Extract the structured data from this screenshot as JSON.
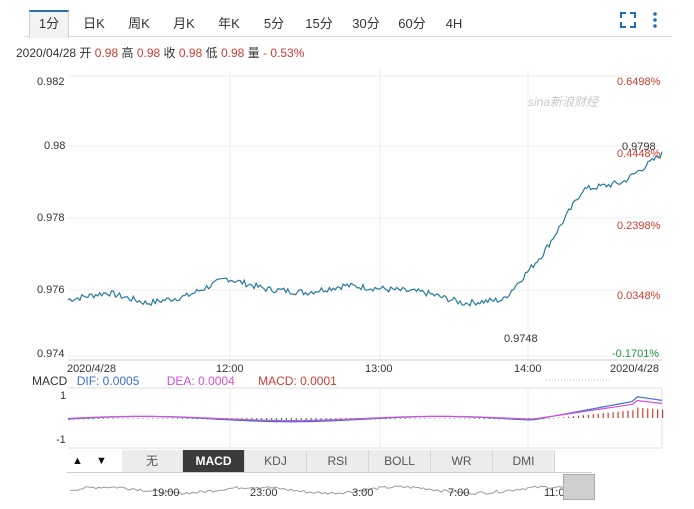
{
  "tabs": [
    "1分",
    "日K",
    "周K",
    "月K",
    "年K",
    "5分",
    "15分",
    "30分",
    "60分",
    "4H"
  ],
  "active_tab": "1分",
  "icons": {
    "fullscreen": "fullscreen-icon",
    "more": "more-vertical-icon"
  },
  "quote": {
    "date": "2020/04/28",
    "open_label": "开",
    "open": "0.98",
    "high_label": "高",
    "high": "0.98",
    "close_label": "收",
    "close": "0.98",
    "low_label": "低",
    "low": "0.98",
    "vol_label": "量",
    "change": "- 0.53%"
  },
  "watermark": "sina新浪财经",
  "price_axis": [
    "0.982",
    "0.98",
    "0.978",
    "0.976",
    "0.974"
  ],
  "pct_axis": [
    "0.6498%",
    "0.4448%",
    "0.2398%",
    "0.0348%",
    "-0.1701%"
  ],
  "x_labels": [
    "2020/4/28",
    "12:00",
    "13:00",
    "14:00",
    "2020/4/28"
  ],
  "annotations": {
    "last": "0.9798",
    "low_point": "0.9748"
  },
  "macd": {
    "title": "MACD",
    "dif_label": "DIF: 0.0005",
    "dea_label": "DEA: 0.0004",
    "macd_label": "MACD: 0.0001",
    "axis": [
      "1",
      "-1"
    ]
  },
  "indicator_buttons": [
    "无",
    "MACD",
    "KDJ",
    "RSI",
    "BOLL",
    "WR",
    "DMI"
  ],
  "active_indicator": "MACD",
  "nav_arrows": [
    "▲",
    "▼"
  ],
  "navigator_labels": [
    "19:00",
    "23:00",
    "3:00",
    "7:00",
    "11:00"
  ],
  "colors": {
    "price_line": "#2a7a9e",
    "dif": "#3b6fd1",
    "dea": "#d64fd6",
    "up": "#d03b2e",
    "down": "#1a9b36",
    "accent": "#2a6fb2"
  },
  "chart_data": {
    "type": "line",
    "x": [
      "11:14",
      "11:30",
      "11:45",
      "12:00",
      "12:15",
      "12:30",
      "12:45",
      "13:00",
      "13:15",
      "13:30",
      "13:45",
      "14:00",
      "14:15",
      "14:30",
      "14:45",
      "14:55"
    ],
    "series": [
      {
        "values": [
          0.9757,
          0.9759,
          0.9756,
          0.9758,
          0.9763,
          0.976,
          0.9759,
          0.9761,
          0.976,
          0.9759,
          0.9756,
          0.9757,
          0.977,
          0.9788,
          0.979,
          0.9798
        ]
      }
    ],
    "ylim": [
      0.974,
      0.982
    ],
    "grid": true
  }
}
